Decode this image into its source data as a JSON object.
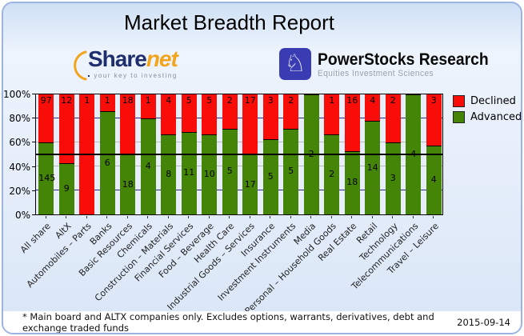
{
  "header": {
    "title": "Market Breadth Report"
  },
  "logos": {
    "sharenet": {
      "name_part1": "Share",
      "name_part2": "net",
      "tagline": "your key to investing",
      "navy": "#1f2e6d",
      "orange": "#f2a41c"
    },
    "powerstocks": {
      "name": "PowerStocks  Research",
      "tagline": "Equities Investment Sciences",
      "icon": "knight-chess-icon",
      "knight_glyph": "♘",
      "square_color": "#3a3cb4"
    }
  },
  "chart_data": {
    "type": "bar",
    "stacked": true,
    "normalized": "100% stacked (advanced vs declined share counts)",
    "categories": [
      "All share",
      "AltX",
      "Automobiles – Parts",
      "Banks",
      "Basic Resources",
      "Chemicals",
      "Construction – Materials",
      "Financial Services",
      "Food – Beverage",
      "Health Care",
      "Industrial Goods – Services",
      "Insurance",
      "Investment Instruments",
      "Media",
      "Personal – Household Goods",
      "Real Estate",
      "Retail",
      "Technology",
      "Telecommunications",
      "Travel – Leisure"
    ],
    "series": [
      {
        "name": "Declined",
        "color": "#f90d08",
        "values": [
          97,
          12,
          1,
          1,
          18,
          1,
          4,
          5,
          5,
          2,
          17,
          3,
          2,
          0,
          1,
          16,
          4,
          2,
          0,
          3
        ]
      },
      {
        "name": "Advanced",
        "color": "#448407",
        "values": [
          145,
          9,
          0,
          6,
          18,
          4,
          8,
          11,
          10,
          5,
          17,
          5,
          5,
          2,
          2,
          18,
          14,
          3,
          4,
          4
        ]
      }
    ],
    "y_ticks": [
      "100%",
      "80%",
      "60%",
      "40%",
      "20%",
      "0%"
    ],
    "ylim": [
      0,
      100
    ],
    "legend_position": "right",
    "gridlines": {
      "navy_at": [
        20,
        80
      ],
      "gray_at": [
        40,
        60
      ],
      "black_line_at": 50,
      "navy_color": "#2b2b8f",
      "gray_color": "#b8b8b8"
    }
  },
  "footer": {
    "note": "* Main board and ALTX companies only. Excludes options, warrants, derivatives, debt and exchange traded funds",
    "date": "2015-09-14"
  }
}
